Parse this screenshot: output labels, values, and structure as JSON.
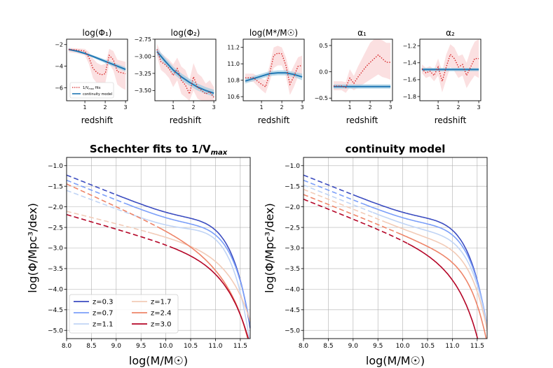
{
  "colors": {
    "z03": "#3b4cc0",
    "z07": "#7b9ff9",
    "z11": "#c0d4f5",
    "z17": "#f2cbb7",
    "z24": "#ee8468",
    "z30": "#b40426",
    "fit_line": "#d62728",
    "fit_band": "#f4a6a8",
    "model_line": "#1f77b4",
    "model_band": "#9ecae1"
  },
  "chart_data": [
    {
      "type": "line",
      "title": "log(Φ₁)",
      "xlabel": "redshift",
      "ylabel": "",
      "xlim": [
        0.1,
        3.1
      ],
      "ylim": [
        -7.2,
        -1.5
      ],
      "xticks": [
        1,
        2,
        3
      ],
      "yticks": [
        -2,
        -4,
        -6
      ],
      "legend": [
        "1/V_max fits",
        "continuity model"
      ],
      "legend_position": "lower-left",
      "fit": {
        "x": [
          0.2,
          0.6,
          1.0,
          1.2,
          1.4,
          1.6,
          1.8,
          2.0,
          2.2,
          2.4,
          2.6,
          2.8,
          3.0
        ],
        "y": [
          -2.45,
          -2.5,
          -2.6,
          -3.2,
          -4.2,
          -4.6,
          -4.8,
          -4.7,
          -3.0,
          -3.4,
          -4.5,
          -4.6,
          -4.7
        ],
        "band_lo": [
          -2.7,
          -2.8,
          -3.0,
          -3.8,
          -5.1,
          -5.6,
          -5.8,
          -5.6,
          -3.8,
          -4.4,
          -5.7,
          -6.0,
          -6.2
        ],
        "band_hi": [
          -2.3,
          -2.35,
          -2.4,
          -2.7,
          -3.3,
          -3.7,
          -3.9,
          -3.8,
          -2.4,
          -2.6,
          -3.4,
          -3.5,
          -3.6
        ]
      },
      "model": {
        "x": [
          0.2,
          0.6,
          1.0,
          1.4,
          1.8,
          2.2,
          2.6,
          3.0
        ],
        "y": [
          -2.45,
          -2.6,
          -2.82,
          -3.1,
          -3.4,
          -3.7,
          -4.0,
          -4.3
        ],
        "band_lo": [
          -2.55,
          -2.7,
          -2.92,
          -3.22,
          -3.55,
          -3.88,
          -4.2,
          -4.5
        ],
        "band_hi": [
          -2.35,
          -2.5,
          -2.72,
          -2.98,
          -3.25,
          -3.52,
          -3.8,
          -4.1
        ]
      }
    },
    {
      "type": "line",
      "title": "log(Φ₂)",
      "xlabel": "redshift",
      "ylabel": "",
      "xlim": [
        0.1,
        3.1
      ],
      "ylim": [
        -3.65,
        -2.75
      ],
      "xticks": [
        1,
        2,
        3
      ],
      "yticks": [
        -2.75,
        -3.0,
        -3.25,
        -3.5
      ],
      "yticklabels": [
        "−2.75",
        "−3.00",
        "−3.25",
        "−3.50"
      ],
      "fit": {
        "x": [
          0.2,
          0.4,
          0.6,
          0.8,
          1.0,
          1.2,
          1.4,
          1.6,
          1.8,
          2.0,
          2.2,
          2.4,
          2.6,
          2.8,
          3.0
        ],
        "y": [
          -2.9,
          -3.08,
          -3.12,
          -3.18,
          -3.28,
          -3.18,
          -3.35,
          -3.42,
          -3.55,
          -3.3,
          -3.45,
          -3.5,
          -3.55,
          -3.52,
          -3.6
        ],
        "band_lo": [
          -3.0,
          -3.2,
          -3.25,
          -3.32,
          -3.45,
          -3.35,
          -3.55,
          -3.6,
          -3.65,
          -3.5,
          -3.62,
          -3.65,
          -3.65,
          -3.65,
          -3.65
        ],
        "band_hi": [
          -2.82,
          -2.95,
          -3.0,
          -3.05,
          -3.12,
          -3.02,
          -3.15,
          -3.2,
          -3.35,
          -3.1,
          -3.25,
          -3.3,
          -3.4,
          -3.35,
          -3.45
        ]
      },
      "model": {
        "x": [
          0.2,
          0.6,
          1.0,
          1.4,
          1.8,
          2.2,
          2.6,
          3.0
        ],
        "y": [
          -2.93,
          -3.07,
          -3.2,
          -3.3,
          -3.38,
          -3.45,
          -3.5,
          -3.54
        ],
        "band_lo": [
          -2.98,
          -3.12,
          -3.25,
          -3.35,
          -3.43,
          -3.5,
          -3.55,
          -3.59
        ],
        "band_hi": [
          -2.88,
          -3.02,
          -3.15,
          -3.25,
          -3.33,
          -3.4,
          -3.45,
          -3.49
        ]
      }
    },
    {
      "type": "line",
      "title": "log(M*/M☉)",
      "xlabel": "redshift",
      "ylabel": "",
      "xlim": [
        0.1,
        3.1
      ],
      "ylim": [
        10.55,
        11.3
      ],
      "xticks": [
        1,
        2,
        3
      ],
      "yticks": [
        10.6,
        10.8,
        11.0,
        11.2
      ],
      "yticklabels": [
        "10.6",
        "10.8",
        "11.0",
        "11.2"
      ],
      "fit": {
        "x": [
          0.2,
          0.6,
          1.0,
          1.2,
          1.4,
          1.6,
          1.8,
          2.0,
          2.2,
          2.4,
          2.6,
          2.8,
          3.0
        ],
        "y": [
          10.83,
          10.83,
          10.75,
          10.72,
          10.88,
          11.1,
          11.13,
          11.12,
          10.98,
          10.75,
          10.85,
          10.97,
          10.98
        ],
        "band_lo": [
          10.78,
          10.78,
          10.68,
          10.64,
          10.78,
          10.95,
          10.98,
          10.98,
          10.85,
          10.62,
          10.72,
          10.85,
          10.85
        ],
        "band_hi": [
          10.88,
          10.88,
          10.82,
          10.8,
          10.98,
          11.2,
          11.22,
          11.2,
          11.08,
          10.88,
          10.98,
          11.08,
          11.1
        ]
      },
      "model": {
        "x": [
          0.2,
          0.6,
          1.0,
          1.4,
          1.8,
          2.2,
          2.6,
          3.0
        ],
        "y": [
          10.79,
          10.82,
          10.85,
          10.88,
          10.89,
          10.89,
          10.87,
          10.84
        ],
        "band_lo": [
          10.76,
          10.79,
          10.82,
          10.85,
          10.86,
          10.86,
          10.84,
          10.8
        ],
        "band_hi": [
          10.82,
          10.85,
          10.88,
          10.91,
          10.92,
          10.92,
          10.9,
          10.88
        ]
      }
    },
    {
      "type": "line",
      "title": "α₁",
      "xlabel": "redshift",
      "ylabel": "",
      "xlim": [
        0.1,
        3.1
      ],
      "ylim": [
        -0.55,
        0.62
      ],
      "xticks": [
        1,
        2,
        3
      ],
      "yticks": [
        0.5,
        0.0,
        -0.5
      ],
      "yticklabels": [
        "0.5",
        "0.0",
        "−0.5"
      ],
      "fit": {
        "x": [
          0.2,
          0.6,
          0.8,
          1.0,
          1.2,
          1.4,
          1.6,
          1.8,
          2.0,
          2.2,
          2.4,
          2.6,
          2.8,
          3.0
        ],
        "y": [
          -0.27,
          -0.27,
          -0.3,
          -0.12,
          -0.22,
          -0.1,
          0.0,
          0.1,
          0.18,
          0.25,
          0.32,
          0.25,
          0.18,
          0.18
        ],
        "band_lo": [
          -0.35,
          -0.35,
          -0.4,
          -0.3,
          -0.35,
          -0.3,
          -0.25,
          -0.2,
          -0.15,
          -0.1,
          -0.05,
          -0.1,
          -0.12,
          -0.15
        ],
        "band_hi": [
          -0.18,
          -0.18,
          -0.2,
          0.05,
          -0.08,
          0.1,
          0.25,
          0.4,
          0.55,
          0.62,
          0.62,
          0.6,
          0.55,
          0.55
        ]
      },
      "model": {
        "x": [
          0.2,
          1.0,
          2.0,
          3.0
        ],
        "y": [
          -0.28,
          -0.28,
          -0.28,
          -0.28
        ],
        "band_lo": [
          -0.32,
          -0.32,
          -0.32,
          -0.32
        ],
        "band_hi": [
          -0.24,
          -0.24,
          -0.24,
          -0.24
        ]
      }
    },
    {
      "type": "line",
      "title": "α₂",
      "xlabel": "redshift",
      "ylabel": "",
      "xlim": [
        0.1,
        3.1
      ],
      "ylim": [
        -1.85,
        -1.12
      ],
      "xticks": [
        1,
        2,
        3
      ],
      "yticks": [
        -1.2,
        -1.4,
        -1.6,
        -1.8
      ],
      "yticklabels": [
        "−1.2",
        "−1.4",
        "−1.6",
        "−1.8"
      ],
      "fit": {
        "x": [
          0.2,
          0.4,
          0.6,
          0.8,
          1.0,
          1.2,
          1.4,
          1.6,
          1.8,
          2.0,
          2.2,
          2.4,
          2.6,
          2.8,
          3.0
        ],
        "y": [
          -1.47,
          -1.52,
          -1.5,
          -1.55,
          -1.45,
          -1.62,
          -1.45,
          -1.3,
          -1.35,
          -1.45,
          -1.42,
          -1.55,
          -1.45,
          -1.35,
          -1.35
        ],
        "band_lo": [
          -1.52,
          -1.58,
          -1.56,
          -1.62,
          -1.55,
          -1.75,
          -1.6,
          -1.45,
          -1.5,
          -1.58,
          -1.55,
          -1.7,
          -1.62,
          -1.55,
          -1.58
        ],
        "band_hi": [
          -1.42,
          -1.46,
          -1.44,
          -1.48,
          -1.35,
          -1.5,
          -1.3,
          -1.18,
          -1.22,
          -1.32,
          -1.3,
          -1.4,
          -1.25,
          -1.15,
          -1.12
        ]
      },
      "model": {
        "x": [
          0.2,
          1.0,
          2.0,
          3.0
        ],
        "y": [
          -1.48,
          -1.48,
          -1.48,
          -1.48
        ],
        "band_lo": [
          -1.5,
          -1.5,
          -1.5,
          -1.5
        ],
        "band_hi": [
          -1.46,
          -1.46,
          -1.46,
          -1.46
        ]
      }
    },
    {
      "type": "line",
      "title": "Schechter fits to 1/V",
      "title_sub": "max",
      "xlabel": "log(M/M☉)",
      "ylabel": "log(Φ/Mpc³/dex)",
      "xlim": [
        8.0,
        11.7
      ],
      "ylim": [
        -5.2,
        -0.8
      ],
      "xticks": [
        8.0,
        8.5,
        9.0,
        9.5,
        10.0,
        10.5,
        11.0,
        11.5
      ],
      "xticklabels": [
        "8.0",
        "8.5",
        "9.0",
        "9.5",
        "10.0",
        "10.5",
        "11.0",
        "11.5"
      ],
      "yticks": [
        -1.0,
        -1.5,
        -2.0,
        -2.5,
        -3.0,
        -3.5,
        -4.0,
        -4.5,
        -5.0
      ],
      "yticklabels": [
        "−1.0",
        "−1.5",
        "−2.0",
        "−2.5",
        "−3.0",
        "−3.5",
        "−4.0",
        "−4.5",
        "−5.0"
      ],
      "legend": [
        "z=0.3",
        "z=0.7",
        "z=1.1",
        "z=1.7",
        "z=2.4",
        "z=3.0"
      ],
      "legend_position": "lower-left",
      "series": [
        {
          "name": "z=0.3",
          "color_key": "z03",
          "lphi1": -2.45,
          "lphi2": -2.93,
          "lmstar": 10.79,
          "a1": -0.28,
          "a2": -1.48,
          "mcut": 9.0
        },
        {
          "name": "z=0.7",
          "color_key": "z07",
          "lphi1": -2.6,
          "lphi2": -3.07,
          "lmstar": 10.82,
          "a1": -0.28,
          "a2": -1.48,
          "mcut": 9.2
        },
        {
          "name": "z=1.1",
          "color_key": "z11",
          "lphi1": -2.65,
          "lphi2": -3.2,
          "lmstar": 10.75,
          "a1": -0.15,
          "a2": -1.45,
          "mcut": 9.4
        },
        {
          "name": "z=1.7",
          "color_key": "z17",
          "lphi1": -4.5,
          "lphi2": -3.4,
          "lmstar": 11.1,
          "a1": 0.0,
          "a2": -1.3,
          "mcut": 9.65
        },
        {
          "name": "z=2.4",
          "color_key": "z24",
          "lphi1": -4.2,
          "lphi2": -3.4,
          "lmstar": 10.9,
          "a1": 0.3,
          "a2": -1.55,
          "mcut": 9.9
        },
        {
          "name": "z=3.0",
          "color_key": "z30",
          "lphi1": -4.7,
          "lphi2": -3.6,
          "lmstar": 11.0,
          "a1": 0.18,
          "a2": -1.35,
          "mcut": 10.1
        }
      ]
    },
    {
      "type": "line",
      "title": "continuity model",
      "xlabel": "log(M/M☉)",
      "ylabel": "log(Φ/Mpc³/dex)",
      "xlim": [
        8.0,
        11.7
      ],
      "ylim": [
        -5.2,
        -0.8
      ],
      "xticks": [
        8.0,
        8.5,
        9.0,
        9.5,
        10.0,
        10.5,
        11.0,
        11.5
      ],
      "xticklabels": [
        "8.0",
        "8.5",
        "9.0",
        "9.5",
        "10.0",
        "10.5",
        "11.0",
        "11.5"
      ],
      "yticks": [
        -1.0,
        -1.5,
        -2.0,
        -2.5,
        -3.0,
        -3.5,
        -4.0,
        -4.5,
        -5.0
      ],
      "yticklabels": [
        "−1.0",
        "−1.5",
        "−2.0",
        "−2.5",
        "−3.0",
        "−3.5",
        "−4.0",
        "−4.5",
        "−5.0"
      ],
      "series": [
        {
          "name": "z=0.3",
          "color_key": "z03",
          "lphi1": -2.45,
          "lphi2": -2.93,
          "lmstar": 10.79,
          "a1": -0.28,
          "a2": -1.48,
          "mcut": 9.0
        },
        {
          "name": "z=0.7",
          "color_key": "z07",
          "lphi1": -2.6,
          "lphi2": -3.07,
          "lmstar": 10.82,
          "a1": -0.28,
          "a2": -1.48,
          "mcut": 9.2
        },
        {
          "name": "z=1.1",
          "color_key": "z11",
          "lphi1": -2.82,
          "lphi2": -3.2,
          "lmstar": 10.85,
          "a1": -0.28,
          "a2": -1.48,
          "mcut": 9.4
        },
        {
          "name": "z=1.7",
          "color_key": "z17",
          "lphi1": -3.1,
          "lphi2": -3.32,
          "lmstar": 10.88,
          "a1": -0.28,
          "a2": -1.48,
          "mcut": 9.65
        },
        {
          "name": "z=2.4",
          "color_key": "z24",
          "lphi1": -3.5,
          "lphi2": -3.45,
          "lmstar": 10.89,
          "a1": -0.28,
          "a2": -1.48,
          "mcut": 9.9
        },
        {
          "name": "z=3.0",
          "color_key": "z30",
          "lphi1": -4.3,
          "lphi2": -3.54,
          "lmstar": 10.84,
          "a1": -0.28,
          "a2": -1.48,
          "mcut": 10.1
        }
      ]
    }
  ]
}
